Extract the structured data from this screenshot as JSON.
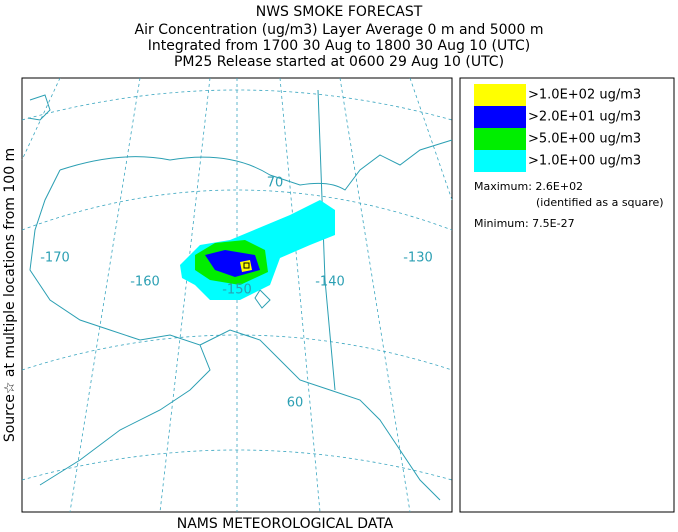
{
  "header": {
    "lines": [
      "NWS SMOKE FORECAST",
      "Air Concentration (ug/m3) Layer Average    0 m and  5000 m",
      "Integrated from 1700 30 Aug to 1800 30 Aug 10 (UTC)",
      "PM25 Release started at 0600 29 Aug 10 (UTC)"
    ]
  },
  "side_label": "Source☆ at multiple locations  from  100 m",
  "footer": "NAMS METEOROLOGICAL DATA",
  "map": {
    "labels": [
      "-170",
      "-160",
      "-150",
      "-140",
      "-130",
      "70",
      "60"
    ]
  },
  "legend": {
    "items": [
      {
        "label": ">1.0E+02 ug/m3",
        "color": "#ffff00"
      },
      {
        "label": ">2.0E+01 ug/m3",
        "color": "#0000ff"
      },
      {
        "label": ">5.0E+00 ug/m3",
        "color": "#00ee00"
      },
      {
        "label": ">1.0E+00 ug/m3",
        "color": "#00ffff"
      }
    ],
    "maximum": "Maximum: 2.6E+02",
    "max_note": "(identified as a square)",
    "minimum": "Minimum: 7.5E-27"
  }
}
